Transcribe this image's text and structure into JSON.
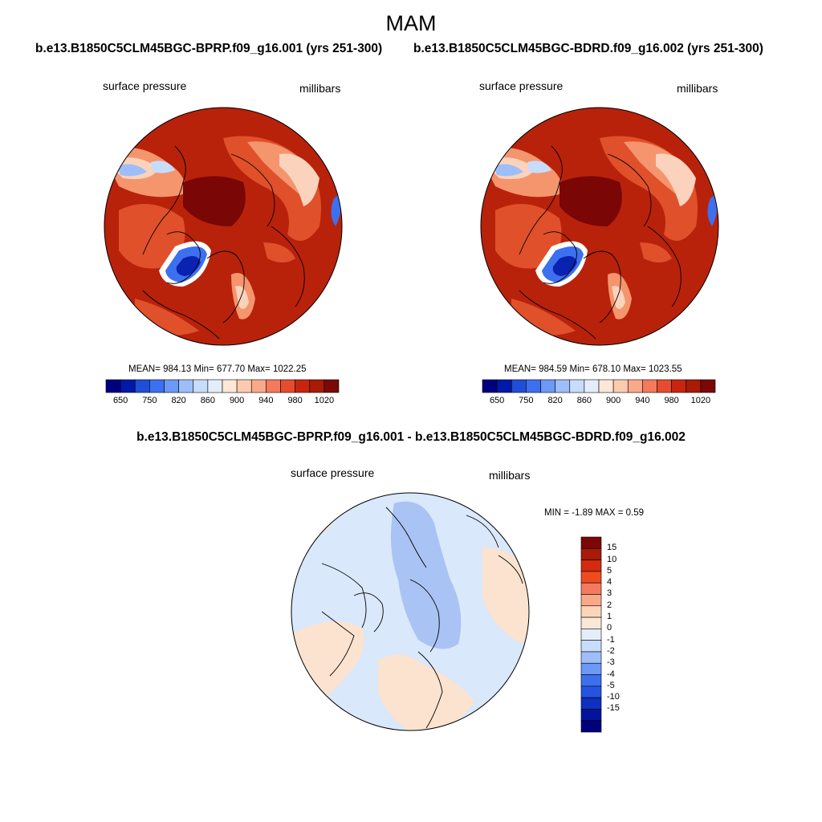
{
  "title": "MAM",
  "left_panel": {
    "case": "b.e13.B1850C5CLM45BGC-BPRP.f09_g16.001 (yrs 251-300)",
    "variable": "surface pressure",
    "units": "millibars",
    "stats": "MEAN= 984.13  Min= 677.70  Max= 1022.25"
  },
  "right_panel": {
    "case": "b.e13.B1850C5CLM45BGC-BDRD.f09_g16.002 (yrs 251-300)",
    "variable": "surface pressure",
    "units": "millibars",
    "stats": "MEAN= 984.59  Min= 678.10  Max= 1023.55"
  },
  "diff_panel": {
    "title": "b.e13.B1850C5CLM45BGC-BPRP.f09_g16.001 - b.e13.B1850C5CLM45BGC-BDRD.f09_g16.002",
    "variable": "surface pressure",
    "units": "millibars",
    "stats": "MIN =  -1.89 MAX =   0.59"
  },
  "abs_colorbar": {
    "colors": [
      "#00007f",
      "#0019a8",
      "#1f4ed8",
      "#3d70ef",
      "#6c99f5",
      "#9dbef9",
      "#c8dcfb",
      "#e4eefb",
      "#fde8d8",
      "#fbcbb0",
      "#f9a98a",
      "#f47a5e",
      "#e74c2e",
      "#c82510",
      "#a81b06",
      "#7c0707"
    ],
    "labels": [
      "650",
      "750",
      "820",
      "860",
      "900",
      "940",
      "980",
      "1020"
    ]
  },
  "diff_colorbar": {
    "colors": [
      "#7c0707",
      "#a81b06",
      "#d42a0f",
      "#f04a1e",
      "#f47a5e",
      "#f9a98a",
      "#fbd5b8",
      "#fbe7d6",
      "#e4eefb",
      "#c8dcfb",
      "#9dbef9",
      "#6c99f5",
      "#3d70ef",
      "#2554e0",
      "#0f2fc0",
      "#04149a",
      "#00007f"
    ],
    "labels": [
      "15",
      "10",
      "5",
      "4",
      "3",
      "2",
      "1",
      "0",
      "-1",
      "-2",
      "-3",
      "-4",
      "-5",
      "-10",
      "-15"
    ]
  },
  "map_colors": {
    "high": "#7a0606",
    "main": "#b8220b",
    "mid": "#e0502a",
    "light": "#f4956e",
    "pale": "#fbd3bc",
    "paleblue": "#d4e3fb",
    "blue": "#3d70ef",
    "dark_blue": "#0a22b0",
    "diff_base": "#d9e8fb",
    "diff_neg": "#a9c3f4",
    "diff_pos": "#fbe3cf"
  }
}
